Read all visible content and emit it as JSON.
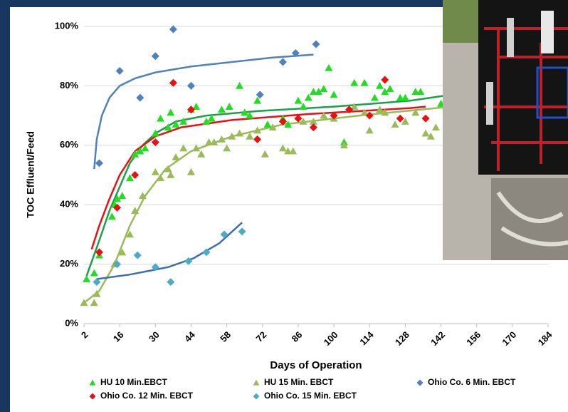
{
  "chart_data": {
    "type": "scatter",
    "xlabel": "Days of Operation",
    "ylabel": "TOC Effluent/Feed",
    "xlim": [
      2,
      184
    ],
    "xticks": [
      2,
      16,
      30,
      44,
      58,
      72,
      86,
      100,
      114,
      128,
      142,
      156,
      170,
      184
    ],
    "ylim": [
      0,
      100
    ],
    "yticks": [
      {
        "value": 0,
        "label": "0%"
      },
      {
        "value": 20,
        "label": "20%"
      },
      {
        "value": 40,
        "label": "40%"
      },
      {
        "value": 60,
        "label": "60%"
      },
      {
        "value": 80,
        "label": "80%"
      },
      {
        "value": 100,
        "label": "100%"
      }
    ],
    "grid": true,
    "legend": "bottom",
    "series": [
      {
        "name": "HU 10 Min.EBCT",
        "color": "#22dd22",
        "marker": "triangle",
        "x": [
          3,
          6,
          8,
          13,
          14,
          15,
          17,
          20,
          22,
          24,
          26,
          30,
          32,
          35,
          36,
          38,
          41,
          44,
          46,
          50,
          52,
          56,
          59,
          63,
          65,
          67,
          70,
          74,
          80,
          82,
          86,
          88,
          90,
          92,
          94,
          96,
          98,
          100,
          104,
          108,
          112,
          116,
          118,
          120,
          122,
          126,
          128,
          132,
          134,
          142,
          144,
          146
        ],
        "values": [
          15,
          17,
          23,
          36,
          40,
          42,
          43,
          49,
          57,
          58,
          59,
          64,
          69,
          66,
          71,
          67,
          68,
          72,
          73,
          68,
          69,
          72,
          73,
          80,
          71,
          70,
          75,
          67,
          69,
          67,
          75,
          73,
          76,
          78,
          78,
          79,
          86,
          77,
          61,
          81,
          81,
          76,
          80,
          78,
          79,
          76,
          76,
          78,
          78,
          74,
          73,
          78
        ]
      },
      {
        "name": "HU 15 Min. EBCT",
        "color": "#9bbb59",
        "marker": "triangle",
        "x": [
          2,
          6,
          7,
          14,
          17,
          20,
          22,
          25,
          30,
          32,
          35,
          36,
          38,
          41,
          44,
          46,
          48,
          51,
          53,
          56,
          58,
          60,
          63,
          67,
          70,
          73,
          76,
          80,
          82,
          84,
          88,
          92,
          96,
          100,
          104,
          108,
          112,
          114,
          118,
          120,
          124,
          128,
          132,
          136,
          138,
          140,
          144
        ],
        "values": [
          7,
          7,
          10,
          20,
          24,
          30,
          38,
          43,
          51,
          49,
          52,
          50,
          56,
          59,
          51,
          59,
          57,
          61,
          61,
          62,
          59,
          63,
          64,
          63,
          65,
          57,
          66,
          59,
          58,
          58,
          68,
          68,
          70,
          69,
          60,
          73,
          71,
          65,
          72,
          71,
          67,
          68,
          71,
          64,
          63,
          66,
          73
        ]
      },
      {
        "name": "Ohio Co. 6 Min. EBCT",
        "color": "#4f81bd",
        "marker": "diamond",
        "x": [
          8,
          16,
          24,
          30,
          37,
          44,
          71,
          80,
          85,
          93
        ],
        "values": [
          54,
          85,
          76,
          90,
          99,
          80,
          77,
          88,
          91,
          94
        ]
      },
      {
        "name": "Ohio Co. 12 Min. EBCT",
        "color": "#e81010",
        "marker": "diamond",
        "x": [
          8,
          15,
          22,
          30,
          37,
          44,
          70,
          80,
          86,
          92,
          100,
          106,
          114,
          120,
          126,
          136
        ],
        "values": [
          24,
          39,
          50,
          61,
          81,
          72,
          62,
          68,
          69,
          66,
          70,
          72,
          70,
          82,
          69,
          69
        ]
      },
      {
        "name": "Ohio Co. 15 Min. EBCT",
        "color": "#4bacc6",
        "marker": "diamond",
        "x": [
          7,
          15,
          23,
          30,
          36,
          43,
          50,
          57,
          64
        ],
        "values": [
          14,
          20,
          23,
          19,
          14,
          21,
          24,
          30,
          31
        ]
      }
    ],
    "trendlines": [
      {
        "color": "#4f81bd",
        "x": [
          6,
          7,
          9,
          12,
          16,
          22,
          30,
          44,
          60,
          76,
          92
        ],
        "values": [
          52,
          62,
          70,
          76,
          80,
          82.5,
          84.5,
          86.5,
          88,
          89.5,
          90.5
        ]
      },
      {
        "color": "#1aa04a",
        "x": [
          3,
          8,
          12,
          16,
          20,
          25,
          30,
          38,
          50,
          70,
          100,
          130,
          146
        ],
        "values": [
          16,
          28,
          38,
          46,
          54,
          60,
          64,
          68,
          70,
          71.5,
          73,
          75,
          77
        ]
      },
      {
        "color": "#e81010",
        "x": [
          5,
          8,
          12,
          16,
          22,
          30,
          40,
          60,
          90,
          130,
          136
        ],
        "values": [
          25,
          33,
          42,
          50,
          58,
          63,
          66,
          68.5,
          70.5,
          72.5,
          73
        ]
      },
      {
        "color": "#9bbb59",
        "x": [
          2,
          8,
          14,
          20,
          26,
          34,
          44,
          60,
          80,
          110,
          146
        ],
        "values": [
          7,
          11,
          20,
          33,
          43,
          52,
          58,
          63,
          67,
          70,
          73
        ]
      },
      {
        "color": "#3d6fb0",
        "x": [
          7,
          20,
          35,
          45,
          55,
          64
        ],
        "values": [
          15,
          16.5,
          19,
          22,
          27,
          34
        ]
      }
    ]
  }
}
